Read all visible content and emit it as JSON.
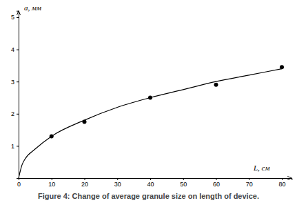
{
  "chart_data": {
    "type": "scatter",
    "title": "Figure 4: Change of average granule size on length of device.",
    "xlabel": "L, см",
    "ylabel": "а, мм",
    "xlim": [
      0,
      83
    ],
    "ylim": [
      0,
      5.2
    ],
    "xticks": [
      0,
      10,
      20,
      30,
      40,
      50,
      60,
      70,
      80
    ],
    "yticks": [
      1,
      2,
      3,
      4,
      5
    ],
    "grid": false,
    "series": [
      {
        "type": "scatter",
        "marker": "circle",
        "color": "#000000",
        "x": [
          10,
          20,
          40,
          60,
          80
        ],
        "values": [
          1.3,
          1.75,
          2.5,
          2.9,
          3.45
        ]
      },
      {
        "type": "line",
        "line_style": "solid",
        "color": "#000000",
        "x": [
          0,
          1,
          2,
          5,
          10,
          20,
          30,
          40,
          50,
          60,
          70,
          80
        ],
        "values": [
          0,
          0.4,
          0.6,
          0.9,
          1.3,
          1.8,
          2.2,
          2.5,
          2.75,
          3.0,
          3.2,
          3.4
        ]
      }
    ]
  }
}
